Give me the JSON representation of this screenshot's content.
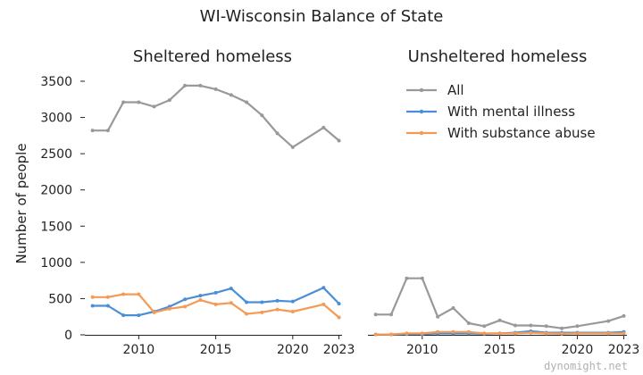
{
  "chart_data": {
    "type": "line",
    "title": "WI-Wisconsin Balance of State",
    "ylabel": "Number of people",
    "watermark": "dynomight.net",
    "ylim": [
      0,
      3500
    ],
    "yticks": [
      0,
      500,
      1000,
      1500,
      2000,
      2500,
      3000,
      3500
    ],
    "xlim": [
      2006.5,
      2023.2
    ],
    "xticks": [
      2010,
      2015,
      2020,
      2023
    ],
    "x": [
      2007,
      2008,
      2009,
      2010,
      2011,
      2012,
      2013,
      2014,
      2015,
      2016,
      2017,
      2018,
      2019,
      2020,
      2022,
      2023
    ],
    "colors": {
      "All": "#999999",
      "With mental illness": "#4a8fd6",
      "With substance abuse": "#f59a55"
    },
    "legend_position": "top-right of second panel",
    "panels": [
      {
        "title": "Sheltered homeless",
        "series": [
          {
            "name": "All",
            "values": [
              2820,
              2820,
              3210,
              3210,
              3150,
              3240,
              3440,
              3440,
              3390,
              3310,
              3210,
              3030,
              2780,
              2590,
              2860,
              2680
            ]
          },
          {
            "name": "With mental illness",
            "values": [
              400,
              400,
              270,
              270,
              320,
              390,
              490,
              540,
              580,
              640,
              450,
              450,
              470,
              460,
              650,
              430
            ]
          },
          {
            "name": "With substance abuse",
            "values": [
              520,
              520,
              560,
              560,
              310,
              360,
              390,
              480,
              420,
              440,
              290,
              310,
              350,
              320,
              420,
              240
            ]
          }
        ]
      },
      {
        "title": "Unsheltered homeless",
        "series": [
          {
            "name": "All",
            "values": [
              280,
              280,
              780,
              780,
              250,
              370,
              160,
              120,
              200,
              130,
              130,
              120,
              90,
              120,
              190,
              260
            ]
          },
          {
            "name": "With mental illness",
            "values": [
              5,
              5,
              10,
              10,
              20,
              20,
              20,
              15,
              20,
              30,
              50,
              30,
              30,
              30,
              30,
              40
            ]
          },
          {
            "name": "With substance abuse",
            "values": [
              5,
              5,
              20,
              20,
              40,
              40,
              40,
              20,
              20,
              20,
              30,
              20,
              15,
              20,
              20,
              20
            ]
          }
        ]
      }
    ]
  }
}
